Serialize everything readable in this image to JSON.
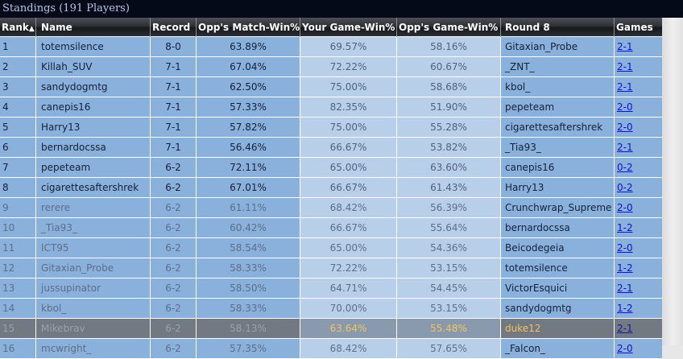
{
  "title": "Standings (191 Players)",
  "columns": {
    "rank": "Rank",
    "name": "Name",
    "record": "Record",
    "omw": "Opp's Match-Win%",
    "ygw": "Your Game-Win%",
    "ogw": "Opp's Game-Win%",
    "round": "Round 8",
    "games": "Games"
  },
  "sort_icon": "sort-ascending-triangle",
  "rows": [
    {
      "rank": "1",
      "name": "totemsilence",
      "record": "8-0",
      "omw": "63.89%",
      "ygw": "69.57%",
      "ogw": "58.16%",
      "opponent": "Gitaxian_Probe",
      "games": "2-1"
    },
    {
      "rank": "2",
      "name": "Killah_SUV",
      "record": "7-1",
      "omw": "67.04%",
      "ygw": "72.22%",
      "ogw": "60.67%",
      "opponent": "_ZNT_",
      "games": "2-1"
    },
    {
      "rank": "3",
      "name": "sandydogmtg",
      "record": "7-1",
      "omw": "62.50%",
      "ygw": "75.00%",
      "ogw": "58.68%",
      "opponent": "kbol_",
      "games": "2-1"
    },
    {
      "rank": "4",
      "name": "canepis16",
      "record": "7-1",
      "omw": "57.33%",
      "ygw": "82.35%",
      "ogw": "51.90%",
      "opponent": "pepeteam",
      "games": "2-0"
    },
    {
      "rank": "5",
      "name": "Harry13",
      "record": "7-1",
      "omw": "57.82%",
      "ygw": "75.00%",
      "ogw": "55.28%",
      "opponent": "cigarettesaftershrek",
      "games": "2-0"
    },
    {
      "rank": "6",
      "name": "bernardocssa",
      "record": "7-1",
      "omw": "56.46%",
      "ygw": "66.67%",
      "ogw": "53.82%",
      "opponent": "_Tia93_",
      "games": "2-1"
    },
    {
      "rank": "7",
      "name": "pepeteam",
      "record": "6-2",
      "omw": "72.11%",
      "ygw": "65.00%",
      "ogw": "63.60%",
      "opponent": "canepis16",
      "games": "0-2"
    },
    {
      "rank": "8",
      "name": "cigarettesaftershrek",
      "record": "6-2",
      "omw": "67.01%",
      "ygw": "66.67%",
      "ogw": "61.43%",
      "opponent": "Harry13",
      "games": "0-2"
    },
    {
      "rank": "9",
      "name": "rerere",
      "record": "6-2",
      "omw": "61.11%",
      "ygw": "68.42%",
      "ogw": "56.39%",
      "opponent": "Crunchwrap_Supreme",
      "games": "2-0"
    },
    {
      "rank": "10",
      "name": "_Tia93_",
      "record": "6-2",
      "omw": "60.42%",
      "ygw": "66.67%",
      "ogw": "55.64%",
      "opponent": "bernardocssa",
      "games": "1-2"
    },
    {
      "rank": "11",
      "name": "ICT95",
      "record": "6-2",
      "omw": "58.54%",
      "ygw": "65.00%",
      "ogw": "54.36%",
      "opponent": "Beicodegeia",
      "games": "2-0"
    },
    {
      "rank": "12",
      "name": "Gitaxian_Probe",
      "record": "6-2",
      "omw": "58.33%",
      "ygw": "72.22%",
      "ogw": "53.15%",
      "opponent": "totemsilence",
      "games": "1-2"
    },
    {
      "rank": "13",
      "name": "jussupinator",
      "record": "6-2",
      "omw": "58.50%",
      "ygw": "64.71%",
      "ogw": "54.45%",
      "opponent": "VictorEsquici",
      "games": "2-1"
    },
    {
      "rank": "14",
      "name": "kbol_",
      "record": "6-2",
      "omw": "58.33%",
      "ygw": "70.00%",
      "ogw": "53.15%",
      "opponent": "sandydogmtg",
      "games": "1-2"
    },
    {
      "rank": "15",
      "name": "Mikebrav",
      "record": "6-2",
      "omw": "58.13%",
      "ygw": "63.64%",
      "ogw": "55.48%",
      "opponent": "duke12",
      "games": "2-1"
    },
    {
      "rank": "16",
      "name": "mcwright_",
      "record": "6-2",
      "omw": "57.35%",
      "ygw": "68.42%",
      "ogw": "57.65%",
      "opponent": "_Falcon_",
      "games": "2-0"
    }
  ],
  "highlighted_rank": "15",
  "colors": {
    "title_bar": "#050a18",
    "title_text": "#b3c8ea",
    "row_dark": "#8ab0dc",
    "row_light": "#b8cfea",
    "highlight_row": "#727982",
    "highlight_text": "#f2c35a",
    "link": "#1010d8"
  }
}
